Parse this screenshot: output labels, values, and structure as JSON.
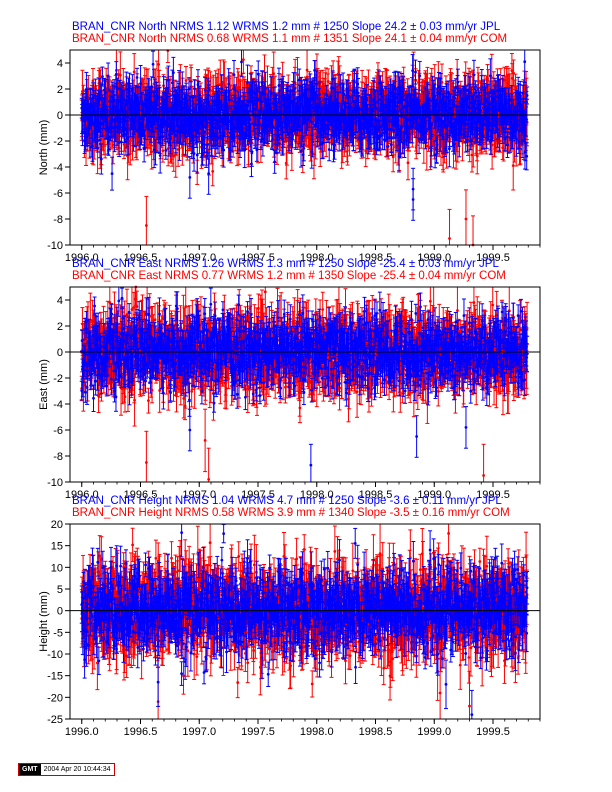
{
  "chart_data": [
    {
      "type": "scatter",
      "ylabel": "North (mm)",
      "titles": [
        {
          "text": "BRAN_CNR North NRMS 1.12 WRMS  1.2 mm # 1250 Slope   24.2 ±  0.03 mm/yr JPL",
          "color": "#0000ff"
        },
        {
          "text": "BRAN_CNR North NRMS 0.68 WRMS  1.1 mm # 1351 Slope   24.1 ±  0.04 mm/yr COM",
          "color": "#ff0000"
        }
      ],
      "xlim": [
        1995.9,
        1999.9
      ],
      "ylim": [
        -10,
        5
      ],
      "xticks": [
        1996.0,
        1996.5,
        1997.0,
        1997.5,
        1998.0,
        1998.5,
        1999.0,
        1999.5
      ],
      "xtick_labels": [
        "1996.0",
        "1996.5",
        "1997.0",
        "1997.5",
        "1998.0",
        "1998.5",
        "1999.0",
        "1999.5"
      ],
      "yticks": [
        -10,
        -8,
        -6,
        -4,
        -2,
        0,
        2,
        4
      ],
      "ytick_labels": [
        "-10",
        "-8",
        "-6",
        "-4",
        "-2",
        "0",
        "2",
        "4"
      ],
      "series": [
        {
          "color": "#ff0000",
          "x_range": [
            1996.0,
            1999.79
          ],
          "n": 1351,
          "scatter_sd": 1.3,
          "err_mean": 1.4,
          "outliers": [
            {
              "x": 1996.55,
              "y": -8.5
            },
            {
              "x": 1999.13,
              "y": -9.5
            },
            {
              "x": 1999.27,
              "y": -8.0
            },
            {
              "x": 1999.33,
              "y": -10.0
            }
          ]
        },
        {
          "color": "#0000ff",
          "x_range": [
            1996.0,
            1999.79
          ],
          "n": 1250,
          "scatter_sd": 1.2,
          "err_mean": 1.0,
          "outliers": [
            {
              "x": 1996.92,
              "y": -4.8
            },
            {
              "x": 1997.08,
              "y": -4.5
            },
            {
              "x": 1998.82,
              "y": -6.5
            },
            {
              "x": 1998.82,
              "y": -5.7
            },
            {
              "x": 1999.77,
              "y": 4.1
            }
          ]
        }
      ]
    },
    {
      "type": "scatter",
      "ylabel": "East (mm)",
      "titles": [
        {
          "text": "BRAN_CNR East NRMS 1.26 WRMS  1.3 mm # 1250 Slope  -25.4 ±  0.03 mm/yr JPL",
          "color": "#0000ff"
        },
        {
          "text": "BRAN_CNR East NRMS 0.77 WRMS  1.2 mm # 1350 Slope  -25.4 ±  0.04 mm/yr COM",
          "color": "#ff0000"
        }
      ],
      "xlim": [
        1995.9,
        1999.9
      ],
      "ylim": [
        -10,
        5
      ],
      "xticks": [
        1996.0,
        1996.5,
        1997.0,
        1997.5,
        1998.0,
        1998.5,
        1999.0,
        1999.5
      ],
      "xtick_labels": [
        "1996.0",
        "1996.5",
        "1997.0",
        "1997.5",
        "1998.0",
        "1998.5",
        "1999.0",
        "1999.5"
      ],
      "yticks": [
        -10,
        -8,
        -6,
        -4,
        -2,
        0,
        2,
        4
      ],
      "ytick_labels": [
        "-10",
        "-8",
        "-6",
        "-4",
        "-2",
        "0",
        "2",
        "4"
      ],
      "series": [
        {
          "color": "#ff0000",
          "x_range": [
            1996.0,
            1999.79
          ],
          "n": 1350,
          "scatter_sd": 1.4,
          "err_mean": 1.5,
          "outliers": [
            {
              "x": 1996.55,
              "y": -8.5
            },
            {
              "x": 1997.05,
              "y": -6.8
            },
            {
              "x": 1997.08,
              "y": -9.8
            },
            {
              "x": 1999.42,
              "y": -9.5
            }
          ]
        },
        {
          "color": "#0000ff",
          "x_range": [
            1996.0,
            1999.79
          ],
          "n": 1250,
          "scatter_sd": 1.3,
          "err_mean": 1.0,
          "outliers": [
            {
              "x": 1996.92,
              "y": -6.0
            },
            {
              "x": 1997.95,
              "y": -8.7
            },
            {
              "x": 1998.85,
              "y": -6.5
            },
            {
              "x": 1999.27,
              "y": -5.8
            }
          ]
        }
      ]
    },
    {
      "type": "scatter",
      "ylabel": "Height (mm)",
      "titles": [
        {
          "text": "BRAN_CNR Height NRMS 1.04 WRMS  4.7 mm # 1250 Slope   -3.6 ±  0.11 mm/yr JPL",
          "color": "#0000ff"
        },
        {
          "text": "BRAN_CNR Height NRMS 0.58 WRMS  3.9 mm # 1340 Slope   -3.5 ±  0.16 mm/yr COM",
          "color": "#ff0000"
        }
      ],
      "xlim": [
        1995.9,
        1999.9
      ],
      "ylim": [
        -25,
        20
      ],
      "xticks": [
        1996.0,
        1996.5,
        1997.0,
        1997.5,
        1998.0,
        1998.5,
        1999.0,
        1999.5
      ],
      "xtick_labels": [
        "1996.0",
        "1996.5",
        "1997.0",
        "1997.5",
        "1998.0",
        "1998.5",
        "1999.0",
        "1999.5"
      ],
      "yticks": [
        -25,
        -20,
        -15,
        -10,
        -5,
        0,
        5,
        10,
        15,
        20
      ],
      "ytick_labels": [
        "-25",
        "-20",
        "-15",
        "-10",
        "-5",
        "0",
        "5",
        "10",
        "15",
        "20"
      ],
      "series": [
        {
          "color": "#ff0000",
          "x_range": [
            1996.0,
            1999.79
          ],
          "n": 1340,
          "scatter_sd": 5.0,
          "err_mean": 5.0,
          "outliers": [
            {
              "x": 1996.65,
              "y": -21.0
            },
            {
              "x": 1999.05,
              "y": -19.0
            },
            {
              "x": 1999.3,
              "y": -22.0
            }
          ]
        },
        {
          "color": "#0000ff",
          "x_range": [
            1996.0,
            1999.79
          ],
          "n": 1250,
          "scatter_sd": 4.7,
          "err_mean": 3.5,
          "outliers": [
            {
              "x": 1996.65,
              "y": -16.5
            },
            {
              "x": 1996.85,
              "y": 18.0
            },
            {
              "x": 1999.1,
              "y": -17.0
            },
            {
              "x": 1999.32,
              "y": -24.0
            }
          ]
        }
      ]
    }
  ],
  "footer": {
    "gmt_logo": "GMT",
    "timestamp": "2004 Apr 20 10:44:34"
  }
}
